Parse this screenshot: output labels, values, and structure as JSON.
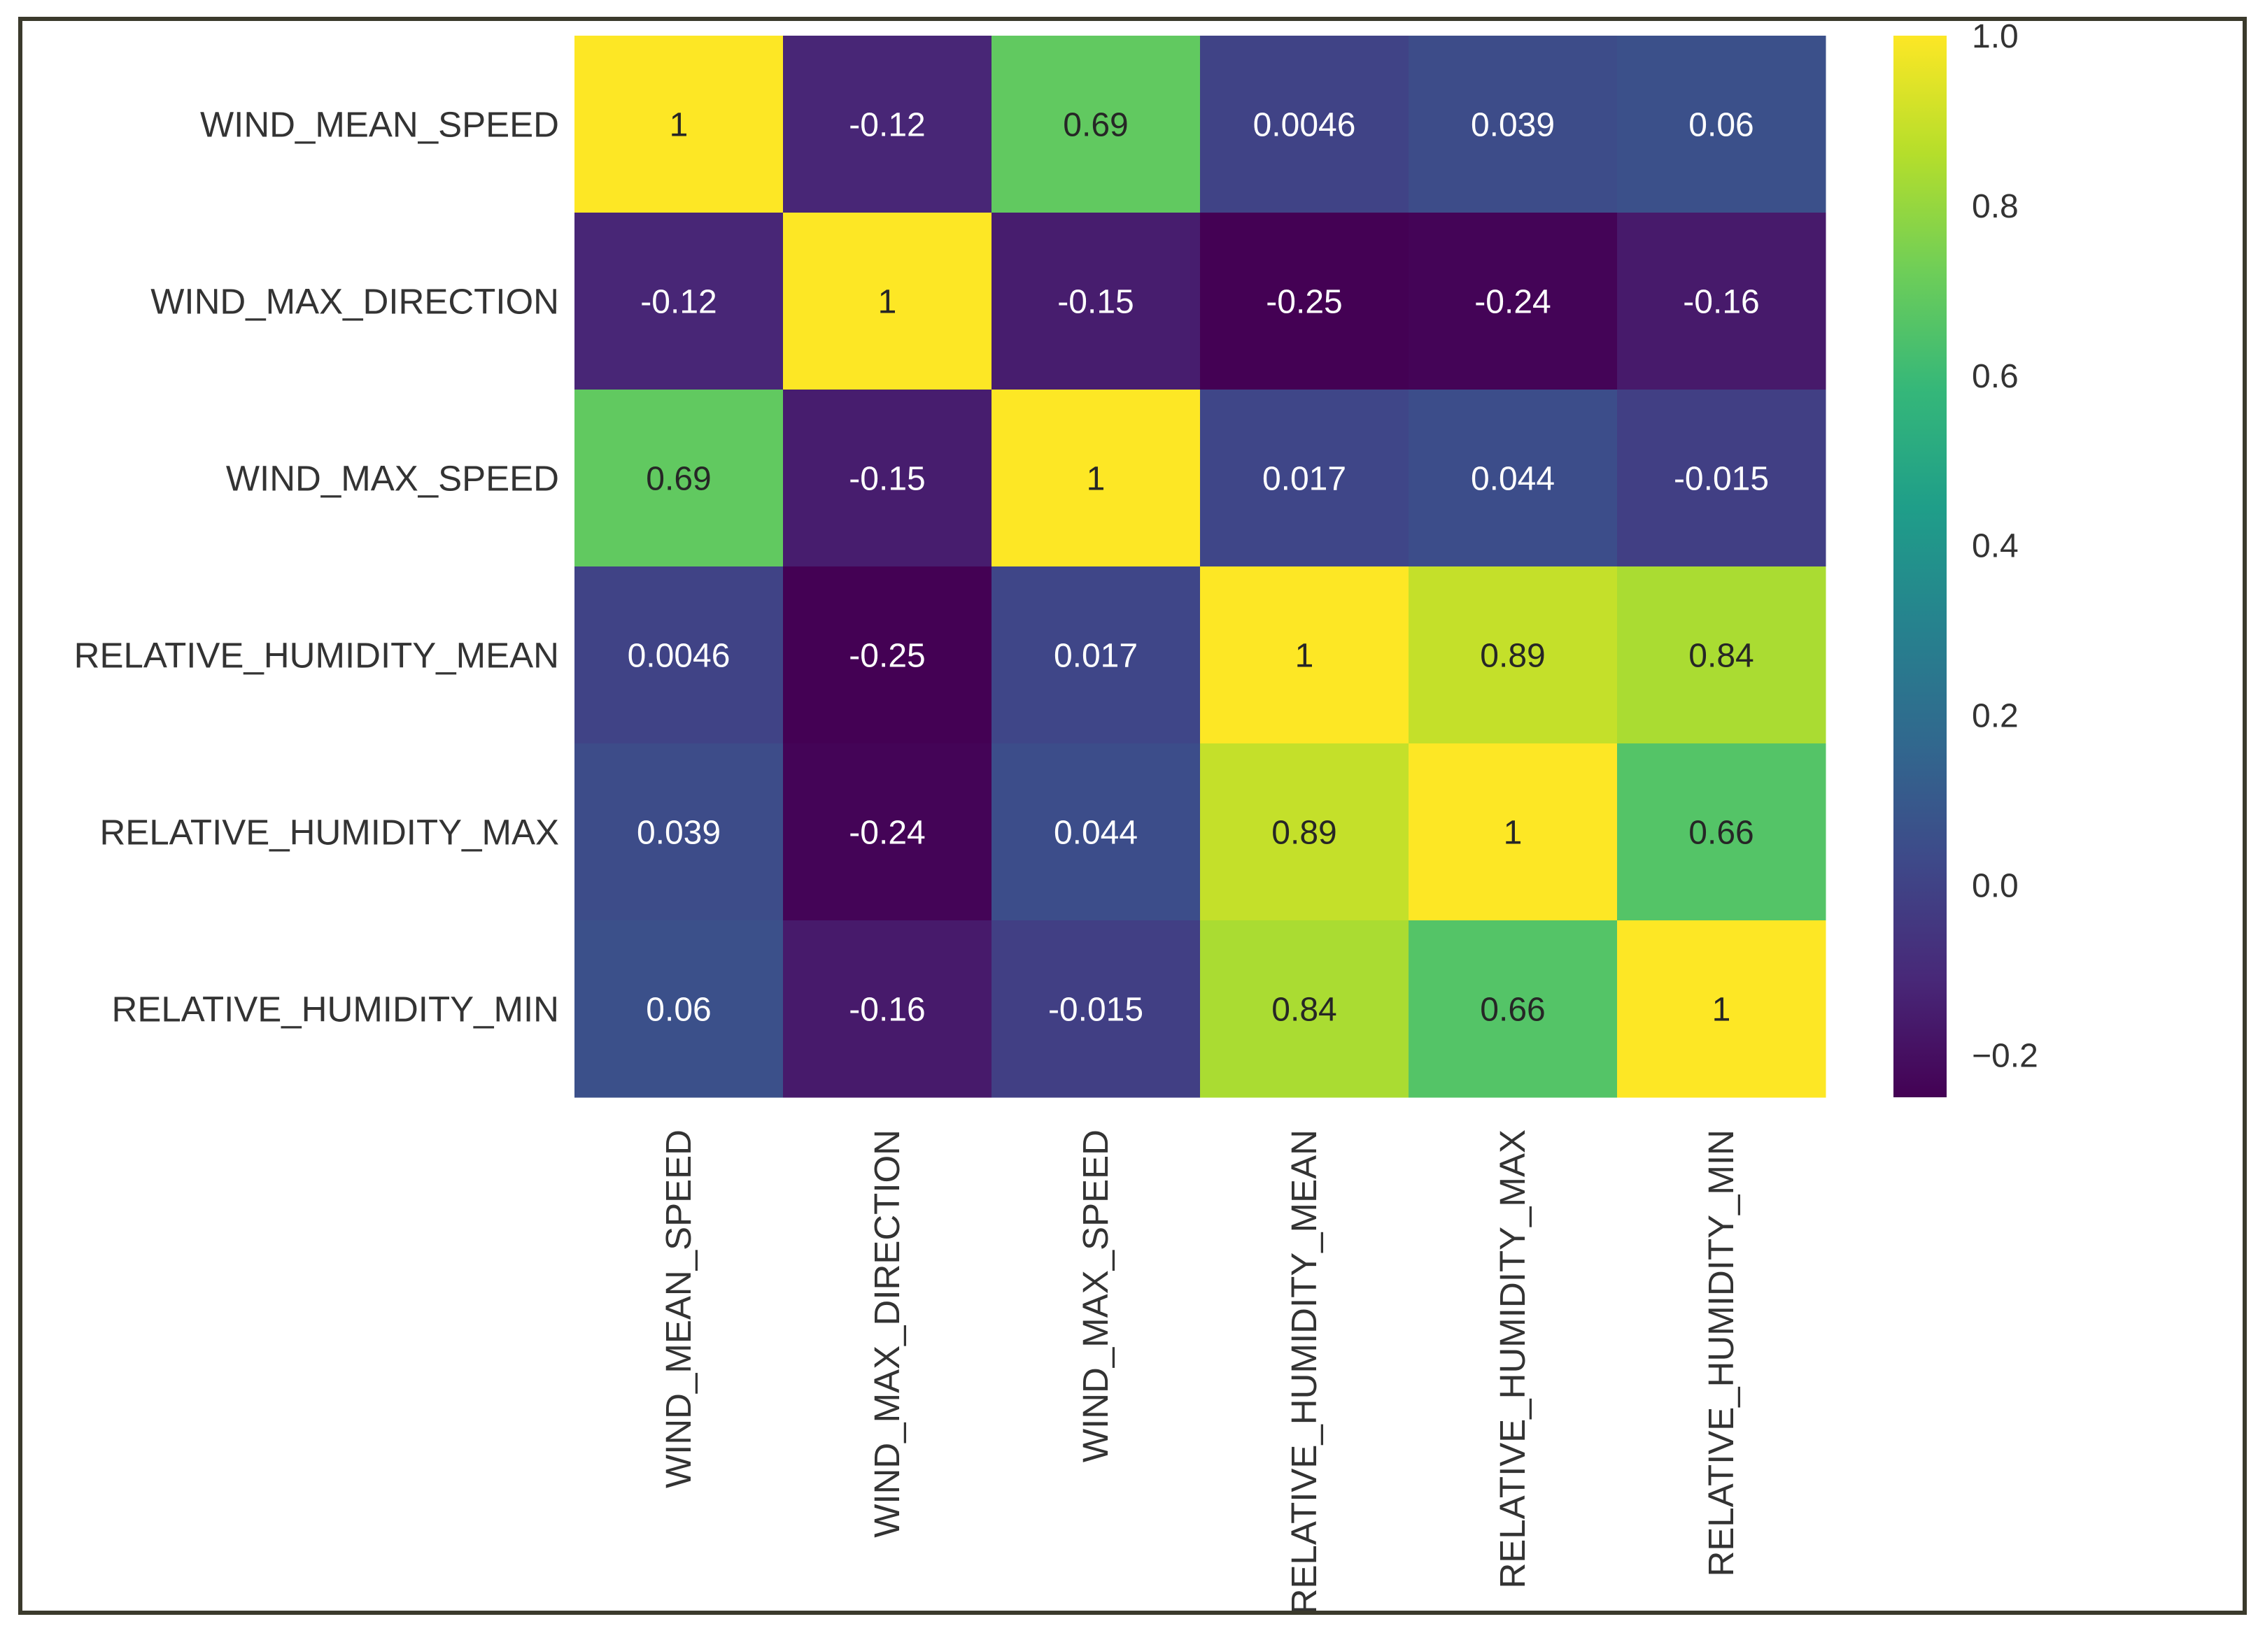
{
  "chart_data": {
    "type": "heatmap",
    "title": "",
    "xlabel": "",
    "ylabel": "",
    "labels": [
      "WIND_MEAN_SPEED",
      "WIND_MAX_DIRECTION",
      "WIND_MAX_SPEED",
      "RELATIVE_HUMIDITY_MEAN",
      "RELATIVE_HUMIDITY_MAX",
      "RELATIVE_HUMIDITY_MIN"
    ],
    "values": [
      [
        1,
        -0.12,
        0.69,
        0.0046,
        0.039,
        0.06
      ],
      [
        -0.12,
        1,
        -0.15,
        -0.25,
        -0.24,
        -0.16
      ],
      [
        0.69,
        -0.15,
        1,
        0.017,
        0.044,
        -0.015
      ],
      [
        0.0046,
        -0.25,
        0.017,
        1,
        0.89,
        0.84
      ],
      [
        0.039,
        -0.24,
        0.044,
        0.89,
        1,
        0.66
      ],
      [
        0.06,
        -0.16,
        -0.015,
        0.84,
        0.66,
        1
      ]
    ],
    "cell_labels": [
      [
        "1",
        "-0.12",
        "0.69",
        "0.0046",
        "0.039",
        "0.06"
      ],
      [
        "-0.12",
        "1",
        "-0.15",
        "-0.25",
        "-0.24",
        "-0.16"
      ],
      [
        "0.69",
        "-0.15",
        "1",
        "0.017",
        "0.044",
        "-0.015"
      ],
      [
        "0.0046",
        "-0.25",
        "0.017",
        "1",
        "0.89",
        "0.84"
      ],
      [
        "0.039",
        "-0.24",
        "0.044",
        "0.89",
        "1",
        "0.66"
      ],
      [
        "0.06",
        "-0.16",
        "-0.015",
        "0.84",
        "0.66",
        "1"
      ]
    ],
    "colormap": "viridis",
    "vmin": -0.25,
    "vmax": 1,
    "colorbar": {
      "ticks": [
        1.0,
        0.8,
        0.6,
        0.4,
        0.2,
        0.0,
        -0.2
      ],
      "tick_labels": [
        "1.0",
        "0.8",
        "0.6",
        "0.4",
        "0.2",
        "0.0",
        "−0.2"
      ]
    }
  },
  "colors": {
    "frame_border": "#3b3a2c",
    "text": "#333333",
    "viridis_stops": [
      "#440154",
      "#482878",
      "#3e4989",
      "#31688e",
      "#26828e",
      "#1f9e89",
      "#35b779",
      "#6ece58",
      "#b5de2b",
      "#fde725"
    ]
  }
}
